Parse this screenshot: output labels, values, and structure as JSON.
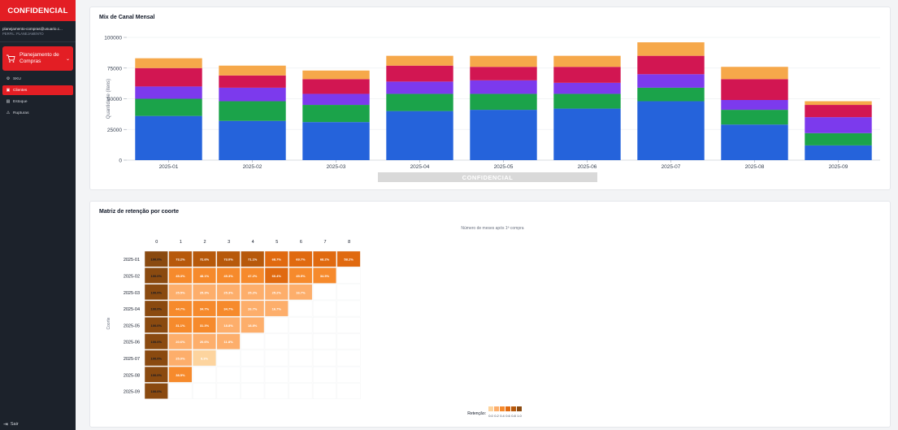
{
  "sidebar": {
    "brand": "CONFIDENCIAL",
    "user_email": "planejamento-compras@usuario.c...",
    "user_role": "PERFIL: PLANEJAMENTO",
    "main_menu": "Planejamento de Compras",
    "items": [
      {
        "label": "SKU",
        "icon": "gear-icon",
        "glyph": "⚙",
        "active": false
      },
      {
        "label": "Clientes",
        "icon": "customers-icon",
        "glyph": "▣",
        "active": true
      },
      {
        "label": "Estoque",
        "icon": "warehouse-icon",
        "glyph": "▤",
        "active": false
      },
      {
        "label": "Rupturas",
        "icon": "warning-icon",
        "glyph": "⚠",
        "active": false
      }
    ],
    "logout": "Sair"
  },
  "channel_mix": {
    "title": "Mix de Canal Mensal",
    "watermark": "CONFIDENCIAL",
    "chart_data": {
      "type": "bar",
      "stacked": true,
      "categories": [
        "2025-01",
        "2025-02",
        "2025-03",
        "2025-04",
        "2025-05",
        "2025-06",
        "2025-07",
        "2025-08",
        "2025-09"
      ],
      "ylabel": "Quantidade (itens)",
      "ylim": [
        0,
        100000
      ],
      "yticks": [
        0,
        25000,
        50000,
        75000,
        100000
      ],
      "grid": true,
      "series": [
        {
          "color": "#2563db",
          "values": [
            36000,
            32000,
            31000,
            40000,
            41000,
            42000,
            48000,
            29000,
            12000
          ]
        },
        {
          "color": "#1ba34a",
          "values": [
            14000,
            16000,
            14000,
            14000,
            13000,
            12000,
            11000,
            12000,
            10000
          ]
        },
        {
          "color": "#7c3aed",
          "values": [
            10000,
            11000,
            9000,
            10000,
            11000,
            9000,
            11000,
            8000,
            13000
          ]
        },
        {
          "color": "#d21652",
          "values": [
            15000,
            10000,
            12000,
            13000,
            11000,
            13000,
            15000,
            17000,
            10000
          ]
        },
        {
          "color": "#f6a84a",
          "values": [
            8000,
            8000,
            7000,
            8000,
            9000,
            9000,
            11000,
            10000,
            3000
          ]
        }
      ]
    }
  },
  "retention": {
    "title": "Matriz de retenção por coorte",
    "chart_data": {
      "type": "heatmap",
      "x_title": "Número de meses após 1ª compra",
      "y_title": "Coorte",
      "x_labels": [
        "0",
        "1",
        "2",
        "3",
        "4",
        "5",
        "6",
        "7",
        "8"
      ],
      "y_labels": [
        "2025-01",
        "2025-02",
        "2025-03",
        "2025-04",
        "2025-05",
        "2025-06",
        "2025-07",
        "2025-08",
        "2025-09"
      ],
      "values": [
        [
          1.0,
          0.732,
          0.726,
          0.73,
          0.711,
          0.687,
          0.697,
          0.682,
          0.582
        ],
        [
          1.0,
          0.453,
          0.481,
          0.453,
          0.472,
          0.604,
          0.455,
          0.345,
          null
        ],
        [
          1.0,
          0.255,
          0.253,
          0.253,
          0.252,
          0.252,
          0.167,
          null,
          null
        ],
        [
          1.0,
          0.447,
          0.347,
          0.347,
          0.267,
          0.167,
          null,
          null,
          null
        ],
        [
          1.0,
          0.311,
          0.313,
          0.188,
          0.188,
          null,
          null,
          null,
          null
        ],
        [
          1.0,
          0.206,
          0.206,
          0.118,
          null,
          null,
          null,
          null,
          null
        ],
        [
          1.0,
          0.25,
          0.083,
          null,
          null,
          null,
          null,
          null,
          null
        ],
        [
          1.0,
          0.385,
          null,
          null,
          null,
          null,
          null,
          null,
          null
        ],
        [
          1.0,
          null,
          null,
          null,
          null,
          null,
          null,
          null,
          null
        ]
      ],
      "cell_labels": [
        [
          "100.0%",
          "73.2%",
          "72.6%",
          "73.0%",
          "71.1%",
          "68.7%",
          "69.7%",
          "68.2%",
          "58.2%"
        ],
        [
          "100.0%",
          "45.3%",
          "48.1%",
          "45.3%",
          "47.2%",
          "60.4%",
          "45.5%",
          "34.5%",
          ""
        ],
        [
          "100.0%",
          "25.5%",
          "25.3%",
          "25.3%",
          "25.2%",
          "25.2%",
          "16.7%",
          "",
          ""
        ],
        [
          "100.0%",
          "44.7%",
          "34.7%",
          "34.7%",
          "26.7%",
          "16.7%",
          "",
          "",
          ""
        ],
        [
          "100.0%",
          "31.1%",
          "31.3%",
          "18.8%",
          "18.8%",
          "",
          "",
          "",
          ""
        ],
        [
          "100.0%",
          "20.6%",
          "20.6%",
          "11.8%",
          "",
          "",
          "",
          "",
          ""
        ],
        [
          "100.0%",
          "25.0%",
          "8.3%",
          "",
          "",
          "",
          "",
          "",
          ""
        ],
        [
          "100.0%",
          "38.5%",
          "",
          "",
          "",
          "",
          "",
          "",
          ""
        ],
        [
          "100.0%",
          "",
          "",
          "",
          "",
          "",
          "",
          "",
          ""
        ]
      ],
      "legend_title": "Retenção:",
      "legend_ticks": [
        "0.0",
        "0.2",
        "0.4",
        "0.6",
        "0.8",
        "1.0"
      ],
      "scale_colors": [
        "#fdd49e",
        "#fdae6b",
        "#f68a2c",
        "#e06a10",
        "#b7590b",
        "#8a4a10"
      ]
    }
  }
}
